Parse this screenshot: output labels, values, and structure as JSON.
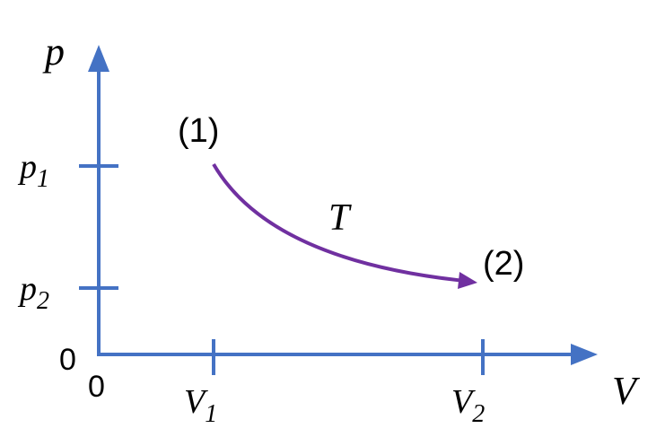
{
  "axes": {
    "y_label": "p",
    "x_label": "V",
    "y_origin": "0",
    "x_origin": "0"
  },
  "y_ticks": [
    {
      "symbol": "p",
      "subscript": "1"
    },
    {
      "symbol": "p",
      "subscript": "2"
    }
  ],
  "x_ticks": [
    {
      "symbol": "V",
      "subscript": "1"
    },
    {
      "symbol": "V",
      "subscript": "2"
    }
  ],
  "points": [
    {
      "label": "(1)"
    },
    {
      "label": "(2)"
    }
  ],
  "curve": {
    "label": "T"
  }
}
